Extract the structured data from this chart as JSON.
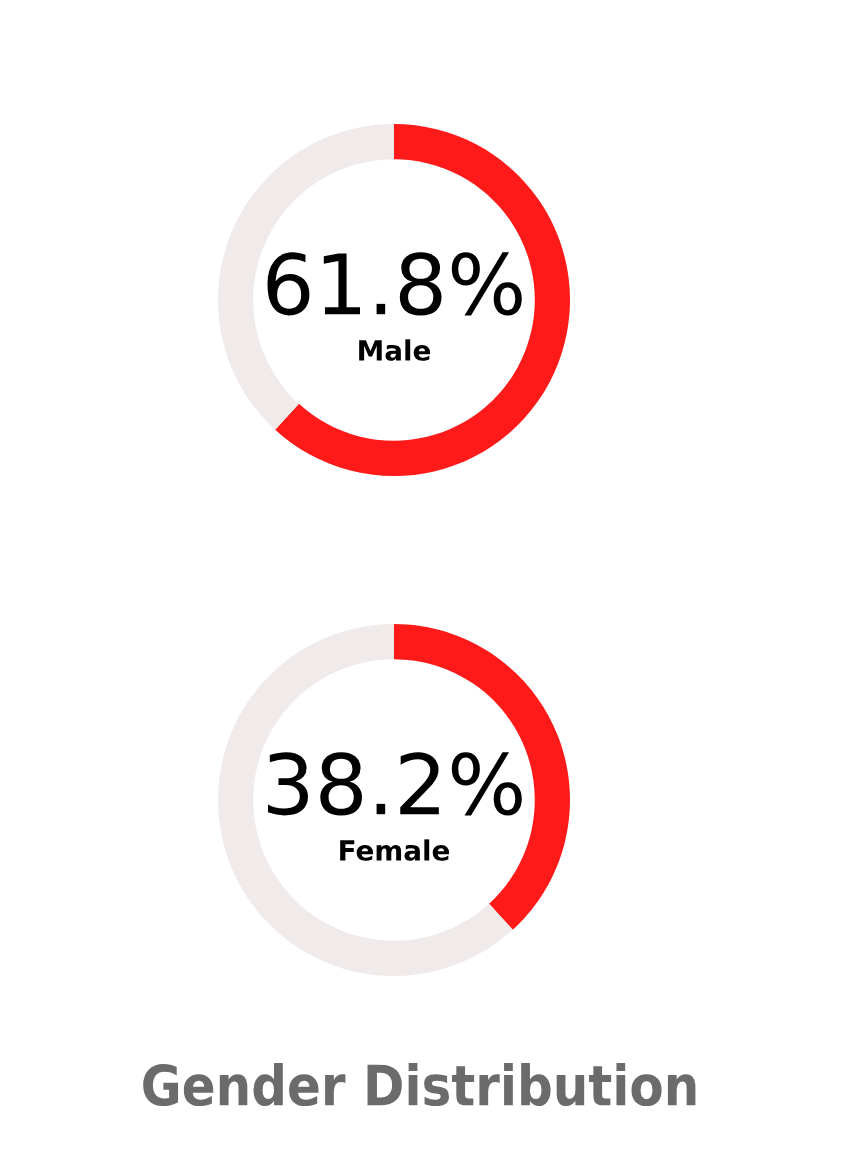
{
  "chart_data": [
    {
      "type": "donut",
      "categories": [
        "Male",
        null
      ],
      "values": [
        61.8,
        38.2
      ],
      "colors": [
        "#ff1a1a",
        "#f0ebea"
      ],
      "value_labels": [
        "61.8%",
        null
      ]
    },
    {
      "type": "donut",
      "categories": [
        "Female",
        null
      ],
      "values": [
        38.2,
        61.8
      ],
      "colors": [
        "#ff1a1a",
        "#f0ebea"
      ],
      "value_labels": [
        "38.2%",
        null
      ],
      "title": "Gender Distribution"
    }
  ]
}
